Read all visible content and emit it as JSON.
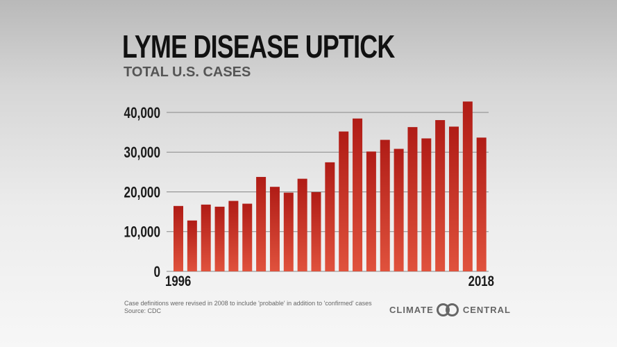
{
  "chart_data": {
    "type": "bar",
    "title": "LYME DISEASE UPTICK",
    "subtitle": "TOTAL U.S. CASES",
    "categories": [
      "1996",
      "1997",
      "1998",
      "1999",
      "2000",
      "2001",
      "2002",
      "2003",
      "2004",
      "2005",
      "2006",
      "2007",
      "2008",
      "2009",
      "2010",
      "2011",
      "2012",
      "2013",
      "2014",
      "2015",
      "2016",
      "2017",
      "2018"
    ],
    "values": [
      16455,
      12801,
      16801,
      16273,
      17730,
      17029,
      23763,
      21273,
      19804,
      23305,
      19931,
      27444,
      35198,
      38468,
      30158,
      33097,
      30831,
      36307,
      33461,
      38069,
      36429,
      42743,
      33666
    ],
    "x_tick_labels": [
      "1996",
      "2018"
    ],
    "y_tick_labels": [
      "0",
      "10,000",
      "20,000",
      "30,000",
      "40,000"
    ],
    "y_ticks": [
      0,
      10000,
      20000,
      30000,
      40000
    ],
    "ylim": [
      0,
      40000
    ],
    "grid": true,
    "bar_color_top": "#b01c16",
    "bar_color_bottom": "#e0523d"
  },
  "footnote": {
    "line1": "Case definitions were revised in 2008 to include 'probable' in addition to 'confirmed' cases",
    "line2": "Source: CDC"
  },
  "logo": {
    "left": "CLIMATE",
    "right": "CENTRAL"
  }
}
